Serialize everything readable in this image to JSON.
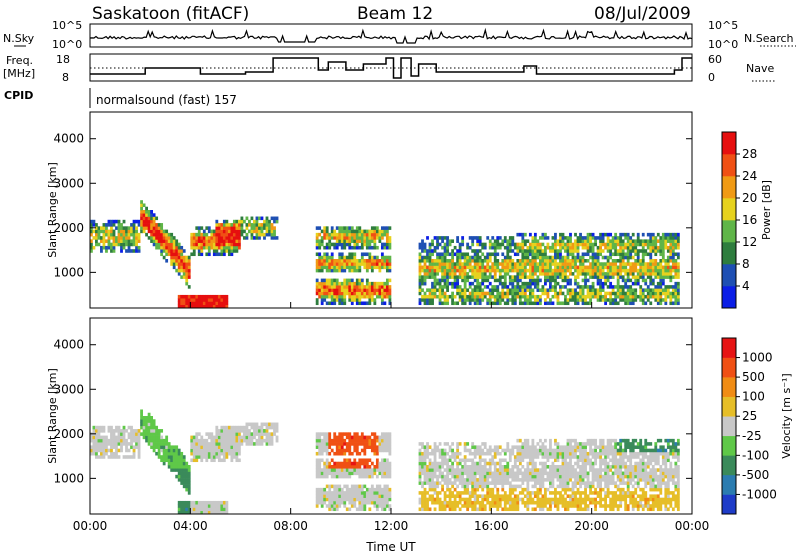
{
  "header": {
    "radar": "Saskatoon (fitACF)",
    "beam": "Beam 12",
    "date": "08/Jul/2009"
  },
  "panels": {
    "nsky": {
      "left_label": "N.Sky",
      "right_label": "N.Search",
      "left_ticks": [
        "10^5",
        "10^0"
      ],
      "right_ticks": [
        "10^5",
        "10^0"
      ]
    },
    "freq": {
      "left_label_1": "Freq.",
      "left_label_2": "[MHz]",
      "right_label": "Nave",
      "left_ticks": [
        "18",
        "8"
      ],
      "right_ticks": [
        "60",
        "0"
      ]
    },
    "cpid": {
      "label": "CPID",
      "text": "normalsound (fast)  157"
    }
  },
  "chart_data": [
    {
      "type": "heatmap",
      "title": "",
      "xlabel": "Time UT",
      "ylabel": "Slant Range [km]",
      "x_ticks": [
        "00:00",
        "04:00",
        "08:00",
        "12:00",
        "16:00",
        "20:00",
        "00:00"
      ],
      "y_ticks": [
        1000,
        2000,
        3000,
        4000
      ],
      "ylim": [
        200,
        4600
      ],
      "colorbar": {
        "label": "Power [dB]",
        "ticks": [
          4,
          8,
          12,
          16,
          20,
          24,
          28
        ],
        "colors": [
          "#0b1ee6",
          "#1e4fb3",
          "#2e7d3e",
          "#5fb548",
          "#e6d21e",
          "#f09a14",
          "#f05014",
          "#e60f0f"
        ]
      },
      "data_gap_hours": [
        [
          7.5,
          9.0
        ],
        [
          12.1,
          12.5
        ],
        [
          12.8,
          13.1
        ]
      ]
    },
    {
      "type": "heatmap",
      "title": "",
      "xlabel": "Time UT",
      "ylabel": "Slant Range [km]",
      "x_ticks": [
        "00:00",
        "04:00",
        "08:00",
        "12:00",
        "16:00",
        "20:00",
        "00:00"
      ],
      "y_ticks": [
        1000,
        2000,
        3000,
        4000
      ],
      "ylim": [
        200,
        4600
      ],
      "colorbar": {
        "label": "Velocity [m s⁻¹]",
        "ticks": [
          "1000",
          "500",
          "100",
          "25",
          "-25",
          "-100",
          "-500",
          "-1000"
        ],
        "colors": [
          "#1e3cc8",
          "#2b7cb0",
          "#3a8a5a",
          "#5fc848",
          "#c8c8c8",
          "#e6be28",
          "#f08c14",
          "#f05014",
          "#e61414"
        ]
      },
      "data_gap_hours": [
        [
          7.5,
          9.0
        ],
        [
          12.1,
          12.5
        ],
        [
          12.8,
          13.1
        ]
      ]
    }
  ]
}
